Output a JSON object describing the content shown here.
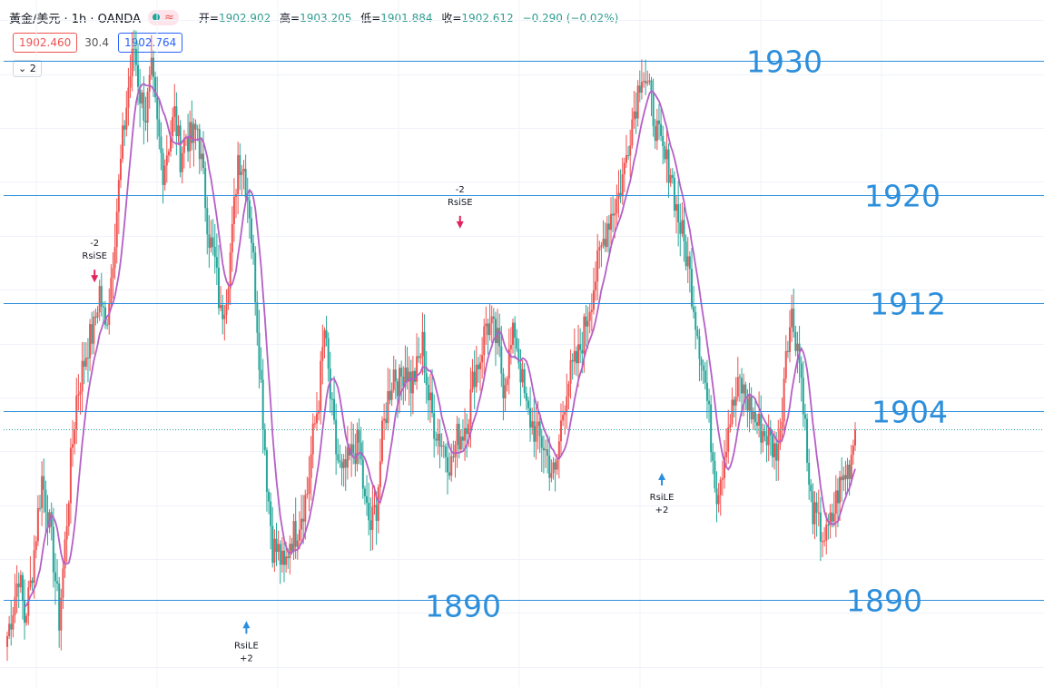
{
  "header": {
    "symbol": "黃金/美元 · 1h · OANDA",
    "ohlc": [
      {
        "label": "开=",
        "value": "1902.902"
      },
      {
        "label": "高=",
        "value": "1903.205"
      },
      {
        "label": "低=",
        "value": "1901.884"
      },
      {
        "label": "收=",
        "value": "1902.612"
      }
    ],
    "change": "−0.290 (−0.02%)",
    "bid": "1902.460",
    "spread": "30.4",
    "ask": "1902.764",
    "collapse_count": "2",
    "collapse_icon": "chevron-down-icon",
    "pill_icons": [
      "status-dot-icon",
      "wave-icon"
    ]
  },
  "colors": {
    "up": "#ef5350",
    "down": "#26a69a",
    "ma": "#b55fc6",
    "levels": "#2d8fdc",
    "last_price": "#26a69a"
  },
  "chart_data": {
    "type": "candlestick",
    "ylim": [
      1883.5,
      1934.5
    ],
    "grid": true,
    "levels": [
      {
        "value": 1930,
        "label": "1930"
      },
      {
        "value": 1920,
        "label": "1920"
      },
      {
        "value": 1912,
        "label": "1912"
      },
      {
        "value": 1904,
        "label": "1904"
      },
      {
        "value": 1890,
        "label": "1890"
      },
      {
        "value": 1890,
        "label": "1890"
      }
    ],
    "last_price": 1902.6,
    "close_path": [
      1887.3,
      1889.5,
      1892,
      1888.5,
      1891,
      1895,
      1899,
      1896.5,
      1893,
      1888.5,
      1894,
      1900,
      1905,
      1907,
      1909,
      1910,
      1913,
      1910,
      1914,
      1919,
      1924,
      1928,
      1931,
      1927.5,
      1926,
      1929,
      1925,
      1922,
      1924,
      1926,
      1923,
      1924.5,
      1924,
      1925,
      1921,
      1917,
      1915,
      1911,
      1913,
      1917,
      1923,
      1922,
      1919,
      1913,
      1906,
      1899,
      1894,
      1893.5,
      1892,
      1894.5,
      1895,
      1896.5,
      1898,
      1902,
      1905,
      1910,
      1905,
      1901,
      1899,
      1900,
      1901,
      1901.5,
      1897,
      1895.3,
      1897,
      1902,
      1905,
      1907,
      1906,
      1907.5,
      1906,
      1907,
      1909,
      1905,
      1903,
      1902,
      1901,
      1900,
      1902,
      1902.5,
      1904,
      1907,
      1908,
      1910.5,
      1910,
      1909,
      1906,
      1908,
      1910,
      1907,
      1904,
      1903,
      1902,
      1901.5,
      1900,
      1899,
      1903,
      1906,
      1907,
      1908,
      1910,
      1912,
      1914,
      1916,
      1918,
      1919,
      1920,
      1922,
      1925,
      1927,
      1929.5,
      1928,
      1926,
      1924,
      1922.5,
      1922,
      1919,
      1917,
      1915,
      1912,
      1909,
      1906,
      1902,
      1898,
      1900,
      1903,
      1904.5,
      1906,
      1905,
      1904,
      1903,
      1902.5,
      1902,
      1901,
      1902,
      1909,
      1911,
      1909,
      1905,
      1898,
      1896,
      1895,
      1894.5,
      1896,
      1898,
      1899,
      1900,
      1902.6
    ],
    "close_path_note_axis": "price (USD), hourly closes",
    "markers": [
      {
        "side": "sell",
        "text": [
          "-2",
          "RsiSE"
        ],
        "price": 1913.4,
        "at": 0.103
      },
      {
        "side": "sell",
        "text": [
          "-2",
          "RsiSE"
        ],
        "price": 1917.4,
        "at": 0.534
      },
      {
        "side": "buy",
        "text": [
          "RsiLE",
          "+2"
        ],
        "price": 1888.4,
        "at": 0.282
      },
      {
        "side": "buy",
        "text": [
          "RsiLE",
          "+2"
        ],
        "price": 1899.4,
        "at": 0.772
      }
    ]
  }
}
